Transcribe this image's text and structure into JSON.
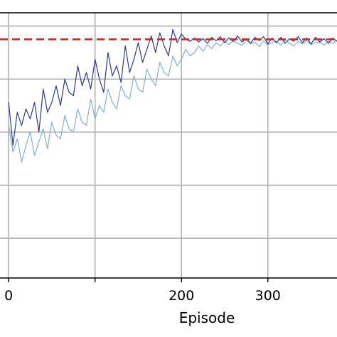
{
  "chart_data": {
    "type": "line",
    "xlabel": "Episode",
    "ylabel": "",
    "title": "",
    "xlim": [
      -10,
      380
    ],
    "ylim": [
      -360,
      40
    ],
    "xticks": [
      0,
      100,
      200,
      300
    ],
    "xtick_labels": [
      "0",
      "",
      "200",
      "300"
    ],
    "ygrid": [
      20,
      -60,
      -140,
      -220,
      -300
    ],
    "grid": true,
    "reference_line": {
      "y": 0,
      "color": "#d62728",
      "style": "dashed"
    },
    "series": [
      {
        "color": "#2b3990",
        "x": [
          0,
          5,
          10,
          15,
          20,
          25,
          30,
          35,
          40,
          45,
          50,
          55,
          60,
          65,
          70,
          75,
          80,
          85,
          90,
          95,
          100,
          105,
          110,
          115,
          120,
          125,
          130,
          135,
          140,
          145,
          150,
          155,
          160,
          165,
          170,
          175,
          180,
          185,
          190,
          195,
          200,
          205,
          210,
          215,
          220,
          225,
          230,
          235,
          240,
          245,
          250,
          255,
          260,
          265,
          270,
          275,
          280,
          285,
          290,
          295,
          300,
          305,
          310,
          315,
          320,
          325,
          330,
          335,
          340,
          345,
          350,
          355,
          360,
          365,
          370,
          375,
          380
        ],
        "y": [
          -95,
          -160,
          -110,
          -130,
          -105,
          -120,
          -95,
          -140,
          -75,
          -110,
          -95,
          -70,
          -100,
          -60,
          -80,
          -85,
          -40,
          -70,
          -50,
          -75,
          -30,
          -60,
          -80,
          -20,
          -55,
          -40,
          -65,
          -10,
          -50,
          -30,
          -5,
          -35,
          -15,
          5,
          -20,
          10,
          -10,
          -25,
          15,
          -5,
          8,
          0,
          -3,
          2,
          -4,
          1,
          -6,
          3,
          -2,
          4,
          -5,
          2,
          -3,
          5,
          -4,
          1,
          -6,
          3,
          -2,
          4,
          -7,
          2,
          -5,
          3,
          -6,
          1,
          -3,
          4,
          -5,
          2,
          -7,
          3,
          -4,
          1,
          -6,
          2,
          -3
        ]
      },
      {
        "color": "#7fb0cf",
        "x": [
          0,
          5,
          10,
          15,
          20,
          25,
          30,
          35,
          40,
          45,
          50,
          55,
          60,
          65,
          70,
          75,
          80,
          85,
          90,
          95,
          100,
          105,
          110,
          115,
          120,
          125,
          130,
          135,
          140,
          145,
          150,
          155,
          160,
          165,
          170,
          175,
          180,
          185,
          190,
          195,
          200,
          205,
          210,
          215,
          220,
          225,
          230,
          235,
          240,
          245,
          250,
          255,
          260,
          265,
          270,
          275,
          280,
          285,
          290,
          295,
          300,
          305,
          310,
          315,
          320,
          325,
          330,
          335,
          340,
          345,
          350,
          355,
          360,
          365,
          370,
          375,
          380
        ],
        "y": [
          -130,
          -170,
          -150,
          -185,
          -160,
          -140,
          -175,
          -155,
          -135,
          -165,
          -125,
          -145,
          -150,
          -115,
          -135,
          -140,
          -105,
          -125,
          -130,
          -90,
          -120,
          -100,
          -110,
          -75,
          -95,
          -105,
          -70,
          -85,
          -90,
          -55,
          -75,
          -80,
          -45,
          -60,
          -70,
          -35,
          -50,
          -55,
          -25,
          -40,
          -30,
          -15,
          -25,
          -20,
          -10,
          -18,
          -8,
          -14,
          -5,
          -10,
          -3,
          -8,
          -2,
          -6,
          -9,
          -1,
          -7,
          -4,
          -11,
          -2,
          -8,
          -5,
          -3,
          -9,
          -1,
          -6,
          -10,
          -3,
          -7,
          -2,
          -8,
          -5,
          -4,
          -9,
          -3,
          -6,
          -2
        ]
      }
    ]
  }
}
